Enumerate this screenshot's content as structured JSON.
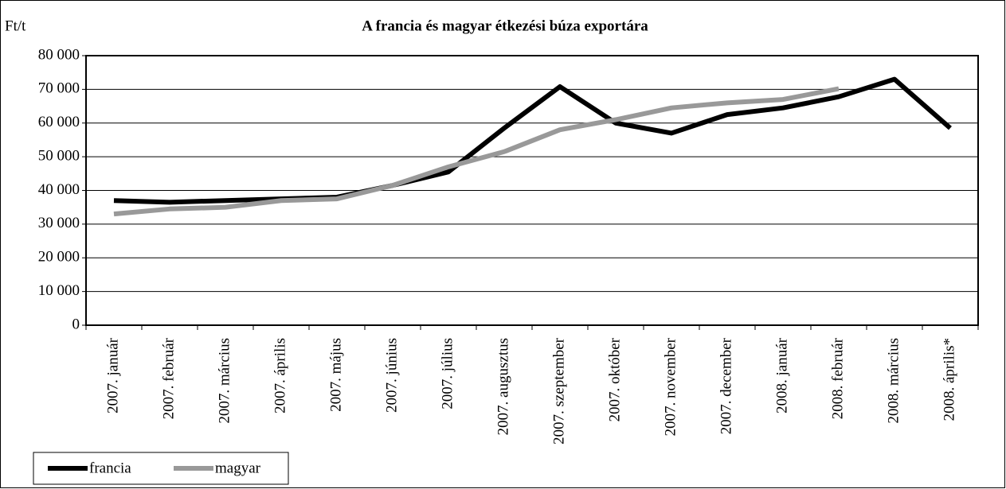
{
  "chart_data": {
    "type": "line",
    "title": "A francia és magyar étkezési búza exportára",
    "y_label": "Ft/t",
    "categories": [
      "2007. január",
      "2007. február",
      "2007. március",
      "2007. április",
      "2007. május",
      "2007. június",
      "2007. július",
      "2007. augusztus",
      "2007. szeptember",
      "2007. október",
      "2007. november",
      "2007. december",
      "2008. január",
      "2008. február",
      "2008. március",
      "2008. április*"
    ],
    "series": [
      {
        "name": "francia",
        "color": "#000000",
        "values": [
          37000,
          36500,
          37000,
          37500,
          38000,
          41500,
          45500,
          58500,
          70800,
          60000,
          57000,
          62500,
          64500,
          67800,
          73000,
          58500
        ]
      },
      {
        "name": "magyar",
        "color": "#999999",
        "values": [
          33000,
          34500,
          35000,
          37000,
          37500,
          41500,
          47000,
          51500,
          58000,
          61000,
          64500,
          66000,
          67000,
          70200,
          null,
          null
        ]
      }
    ],
    "ylim": [
      0,
      80000
    ],
    "yticks": [
      0,
      {
        "value": 10000,
        "label": "10 000"
      },
      {
        "value": 20000,
        "label": "20 000"
      },
      {
        "value": 30000,
        "label": "30 000"
      },
      {
        "value": 40000,
        "label": "40 000"
      },
      {
        "value": 50000,
        "label": "50 000"
      },
      {
        "value": 60000,
        "label": "60 000"
      },
      {
        "value": 70000,
        "label": "70 000"
      },
      {
        "value": 80000,
        "label": "80 000"
      }
    ],
    "grid": true,
    "legend": "bottom-left"
  }
}
